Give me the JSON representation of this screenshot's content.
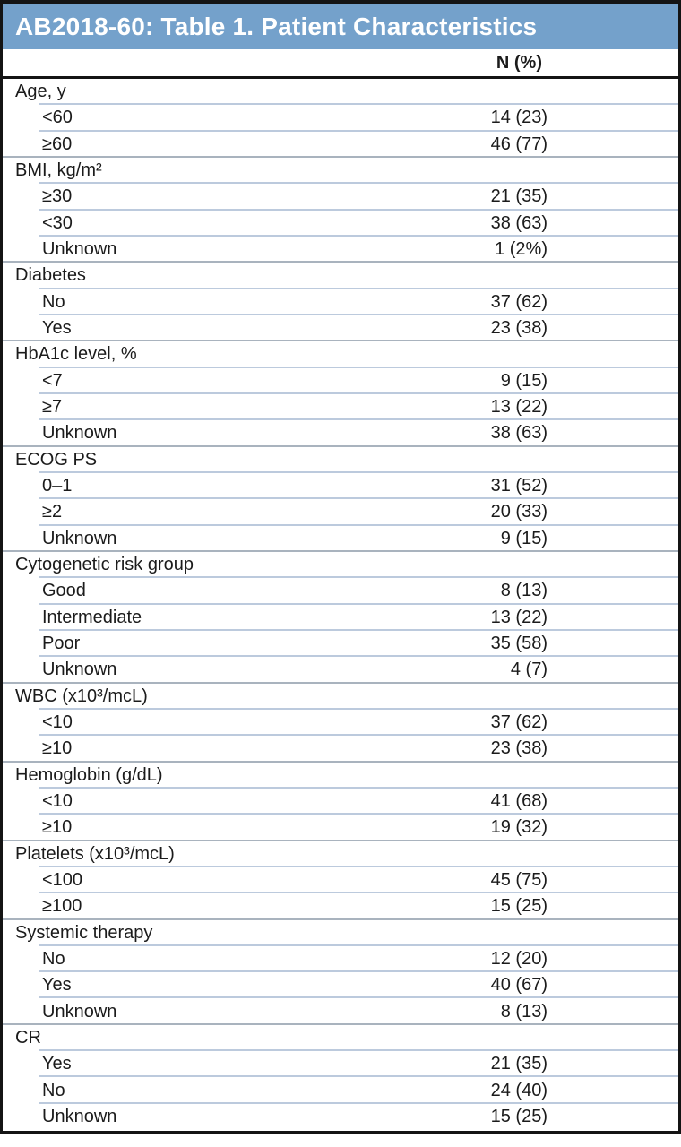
{
  "title": "AB2018-60: Table 1. Patient Characteristics",
  "columns": {
    "value_header": "N (%)"
  },
  "colors": {
    "header_bg": "#74A1CB",
    "header_text": "#ffffff",
    "row_line": "#bccadd",
    "group_line": "#a9b3be",
    "border": "#141414"
  },
  "sections": [
    {
      "label": "Age, y",
      "rows": [
        {
          "label": "<60",
          "value": "14 (23)"
        },
        {
          "label": "≥60",
          "value": "46 (77)"
        }
      ]
    },
    {
      "label": "BMI, kg/m²",
      "rows": [
        {
          "label": "≥30",
          "value": "21 (35)"
        },
        {
          "label": "<30",
          "value": "38 (63)"
        },
        {
          "label": "Unknown",
          "value": "1 (2%)"
        }
      ]
    },
    {
      "label": "Diabetes",
      "rows": [
        {
          "label": "No",
          "value": "37 (62)"
        },
        {
          "label": "Yes",
          "value": "23 (38)"
        }
      ]
    },
    {
      "label": "HbA1c level, %",
      "rows": [
        {
          "label": "<7",
          "value": "9 (15)"
        },
        {
          "label": "≥7",
          "value": "13 (22)"
        },
        {
          "label": "Unknown",
          "value": "38 (63)"
        }
      ]
    },
    {
      "label": "ECOG PS",
      "rows": [
        {
          "label": "0–1",
          "value": "31 (52)"
        },
        {
          "label": "≥2",
          "value": "20 (33)"
        },
        {
          "label": "Unknown",
          "value": "9 (15)"
        }
      ]
    },
    {
      "label": "Cytogenetic risk group",
      "rows": [
        {
          "label": "Good",
          "value": "8 (13)"
        },
        {
          "label": "Intermediate",
          "value": "13 (22)"
        },
        {
          "label": "Poor",
          "value": "35 (58)"
        },
        {
          "label": "Unknown",
          "value": "4 (7)"
        }
      ]
    },
    {
      "label": "WBC (x10³/mcL)",
      "rows": [
        {
          "label": "<10",
          "value": "37 (62)"
        },
        {
          "label": "≥10",
          "value": "23 (38)"
        }
      ]
    },
    {
      "label": "Hemoglobin (g/dL)",
      "rows": [
        {
          "label": "<10",
          "value": "41 (68)"
        },
        {
          "label": "≥10",
          "value": "19 (32)"
        }
      ]
    },
    {
      "label": "Platelets (x10³/mcL)",
      "rows": [
        {
          "label": "<100",
          "value": "45 (75)"
        },
        {
          "label": "≥100",
          "value": "15 (25)"
        }
      ]
    },
    {
      "label": "Systemic therapy",
      "rows": [
        {
          "label": "No",
          "value": "12 (20)"
        },
        {
          "label": "Yes",
          "value": "40 (67)"
        },
        {
          "label": "Unknown",
          "value": "8 (13)"
        }
      ]
    },
    {
      "label": "CR",
      "rows": [
        {
          "label": "Yes",
          "value": "21 (35)"
        },
        {
          "label": "No",
          "value": "24 (40)"
        },
        {
          "label": "Unknown",
          "value": "15 (25)"
        }
      ]
    }
  ]
}
